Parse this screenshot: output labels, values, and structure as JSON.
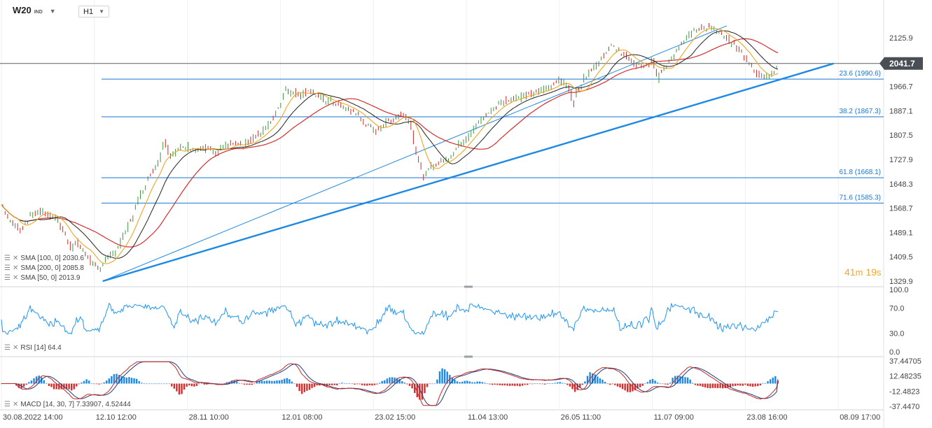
{
  "header": {
    "symbol": "W20",
    "symbol_suffix": "IND",
    "timeframe": "H1"
  },
  "timer": {
    "minutes": "41",
    "min_unit": "m",
    "seconds": "19",
    "sec_unit": "s"
  },
  "colors": {
    "price_line": "#3a3a3a",
    "candle_up": "#3c9a3c",
    "candle_down": "#cc2b2b",
    "sma100": "#222222",
    "sma200": "#d32f2f",
    "sma50": "#f39c12",
    "trendline": "#1e88e5",
    "fib": "#1976d2",
    "rsi": "#2196f3",
    "macd_line": "#c62828",
    "macd_signal": "#1e3c78",
    "hist_up": "#1e88e5",
    "hist_down": "#d32f2f",
    "current_price_bg": "#4a4f55",
    "timer": "#f5a623"
  },
  "legends": {
    "sma100": "SMA [100, 0] 2030.6",
    "sma200": "SMA [200, 0] 2085.8",
    "sma50": "SMA [50, 0] 2013.9",
    "rsi": "RSI [14] 64.4",
    "macd": "MACD [14, 30, 7] 7.33907, 4.52444"
  },
  "chart_data": [
    {
      "type": "line",
      "name": "price",
      "y_axis_ticks": [
        "2125.9",
        "1966.7",
        "1887.1",
        "1807.5",
        "1727.9",
        "1648.3",
        "1568.7",
        "1489.1",
        "1409.5",
        "1329.9"
      ],
      "ylim": [
        1329.9,
        2125.9
      ],
      "current_price": "2041.7",
      "x_axis_labels": [
        "30.08.2022 14:00",
        "12.10 12:00",
        "28.11 10:00",
        "12.01 08:00",
        "23.02 15:00",
        "11.04 13:00",
        "26.05 11:00",
        "11.07 09:00",
        "23.08 16:00",
        "08.09 17:00"
      ],
      "x_axis_positions": [
        0.0,
        0.1,
        0.2,
        0.3,
        0.4,
        0.5,
        0.6,
        0.7,
        0.8,
        0.9
      ],
      "close_series": [
        [
          0.0,
          1580
        ],
        [
          0.01,
          1520
        ],
        [
          0.02,
          1500
        ],
        [
          0.03,
          1540
        ],
        [
          0.04,
          1560
        ],
        [
          0.05,
          1545
        ],
        [
          0.06,
          1530
        ],
        [
          0.07,
          1470
        ],
        [
          0.075,
          1440
        ],
        [
          0.08,
          1460
        ],
        [
          0.09,
          1420
        ],
        [
          0.1,
          1380
        ],
        [
          0.105,
          1360
        ],
        [
          0.11,
          1400
        ],
        [
          0.12,
          1420
        ],
        [
          0.13,
          1470
        ],
        [
          0.14,
          1540
        ],
        [
          0.15,
          1620
        ],
        [
          0.16,
          1680
        ],
        [
          0.17,
          1730
        ],
        [
          0.175,
          1800
        ],
        [
          0.18,
          1740
        ],
        [
          0.19,
          1760
        ],
        [
          0.2,
          1770
        ],
        [
          0.21,
          1760
        ],
        [
          0.22,
          1765
        ],
        [
          0.23,
          1745
        ],
        [
          0.24,
          1770
        ],
        [
          0.25,
          1780
        ],
        [
          0.26,
          1770
        ],
        [
          0.27,
          1800
        ],
        [
          0.28,
          1820
        ],
        [
          0.29,
          1850
        ],
        [
          0.3,
          1910
        ],
        [
          0.305,
          1970
        ],
        [
          0.31,
          1950
        ],
        [
          0.32,
          1940
        ],
        [
          0.33,
          1955
        ],
        [
          0.34,
          1930
        ],
        [
          0.35,
          1920
        ],
        [
          0.36,
          1910
        ],
        [
          0.37,
          1895
        ],
        [
          0.38,
          1880
        ],
        [
          0.39,
          1850
        ],
        [
          0.4,
          1820
        ],
        [
          0.41,
          1840
        ],
        [
          0.42,
          1860
        ],
        [
          0.43,
          1880
        ],
        [
          0.44,
          1850
        ],
        [
          0.445,
          1760
        ],
        [
          0.45,
          1700
        ],
        [
          0.455,
          1670
        ],
        [
          0.46,
          1700
        ],
        [
          0.47,
          1720
        ],
        [
          0.48,
          1730
        ],
        [
          0.49,
          1770
        ],
        [
          0.5,
          1800
        ],
        [
          0.51,
          1840
        ],
        [
          0.52,
          1870
        ],
        [
          0.53,
          1900
        ],
        [
          0.54,
          1920
        ],
        [
          0.55,
          1930
        ],
        [
          0.56,
          1935
        ],
        [
          0.57,
          1945
        ],
        [
          0.58,
          1950
        ],
        [
          0.59,
          1970
        ],
        [
          0.6,
          1990
        ],
        [
          0.61,
          1960
        ],
        [
          0.615,
          1910
        ],
        [
          0.62,
          1960
        ],
        [
          0.63,
          2010
        ],
        [
          0.64,
          2040
        ],
        [
          0.65,
          2070
        ],
        [
          0.655,
          2110
        ],
        [
          0.66,
          2085
        ],
        [
          0.67,
          2070
        ],
        [
          0.68,
          2040
        ],
        [
          0.69,
          2030
        ],
        [
          0.7,
          2050
        ],
        [
          0.705,
          1990
        ],
        [
          0.71,
          2020
        ],
        [
          0.72,
          2060
        ],
        [
          0.73,
          2110
        ],
        [
          0.74,
          2140
        ],
        [
          0.75,
          2155
        ],
        [
          0.76,
          2165
        ],
        [
          0.765,
          2150
        ],
        [
          0.77,
          2140
        ],
        [
          0.78,
          2120
        ],
        [
          0.79,
          2100
        ],
        [
          0.8,
          2060
        ],
        [
          0.81,
          2010
        ],
        [
          0.82,
          2000
        ],
        [
          0.83,
          2010
        ],
        [
          0.835,
          2041.7
        ]
      ]
    },
    {
      "type": "line",
      "name": "fibonacci_levels",
      "levels": [
        {
          "label": "23.6 (1990.6)",
          "value": 1990.6
        },
        {
          "label": "38.2 (1867.3)",
          "value": 1867.3
        },
        {
          "label": "61.8 (1668.1)",
          "value": 1668.1
        },
        {
          "label": "71.6 (1585.3)",
          "value": 1585.3
        }
      ]
    },
    {
      "type": "line",
      "name": "rsi_panel",
      "y_axis_ticks": [
        "100.0",
        "70.0",
        "30.0",
        "0.0"
      ],
      "ylim": [
        0,
        100
      ],
      "last_value": 64.4
    },
    {
      "type": "line",
      "name": "macd_panel",
      "y_axis_ticks": [
        "37.44705",
        "12.48235",
        "-12.4823",
        "-37.4470"
      ],
      "ylim": [
        -37.447,
        37.44705
      ],
      "last_macd": 7.33907,
      "last_signal": 4.52444
    }
  ]
}
